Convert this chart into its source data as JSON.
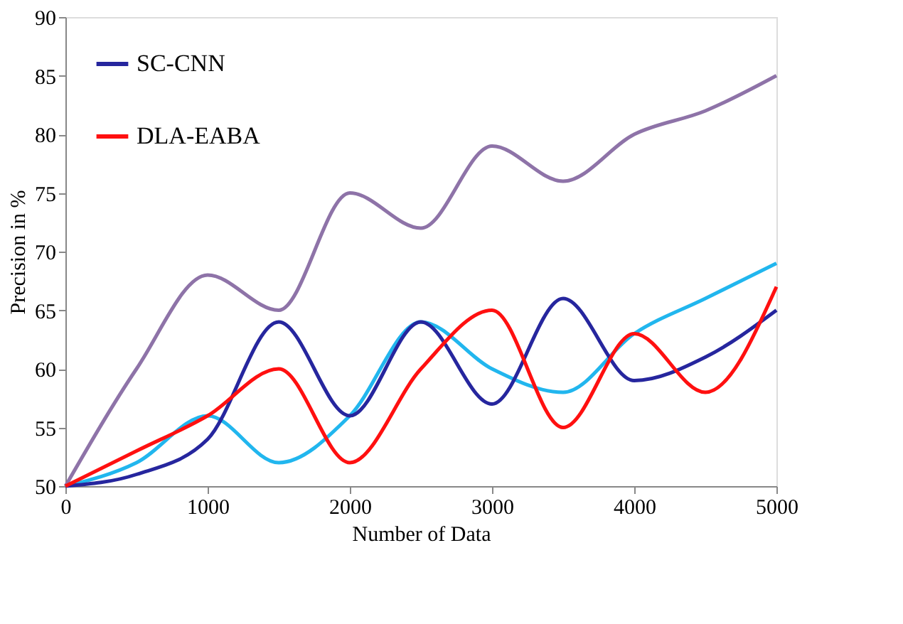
{
  "chart_data": {
    "type": "line",
    "xlabel": "Number of Data",
    "ylabel": "Precision in %",
    "x": [
      0,
      500,
      1000,
      1500,
      2000,
      2500,
      3000,
      3500,
      4000,
      4500,
      5000
    ],
    "series": [
      {
        "color": "#8e73a8",
        "values": [
          50,
          60,
          68,
          65,
          75,
          72,
          79,
          76,
          80,
          82,
          85
        ]
      },
      {
        "color": "#21b6ee",
        "values": [
          50,
          52,
          56,
          52,
          56,
          64,
          60,
          58,
          63,
          66,
          69
        ]
      },
      {
        "name": "SC-CNN",
        "color": "#26269e",
        "values": [
          50,
          51,
          54,
          64,
          56,
          64,
          57,
          66,
          59,
          61,
          65
        ]
      },
      {
        "name": "DLA-EABA",
        "color": "#ff1010",
        "values": [
          50,
          53,
          56,
          60,
          52,
          60,
          65,
          55,
          63,
          58,
          67
        ]
      }
    ],
    "xlim": [
      0,
      5000
    ],
    "xticks": [
      0,
      1000,
      2000,
      3000,
      4000,
      5000
    ],
    "ylim": [
      50,
      90
    ],
    "yticks": [
      50,
      55,
      60,
      65,
      70,
      75,
      80,
      85,
      90
    ],
    "grid": false,
    "legend": "top left",
    "marker": "none",
    "line_style": "solid"
  }
}
